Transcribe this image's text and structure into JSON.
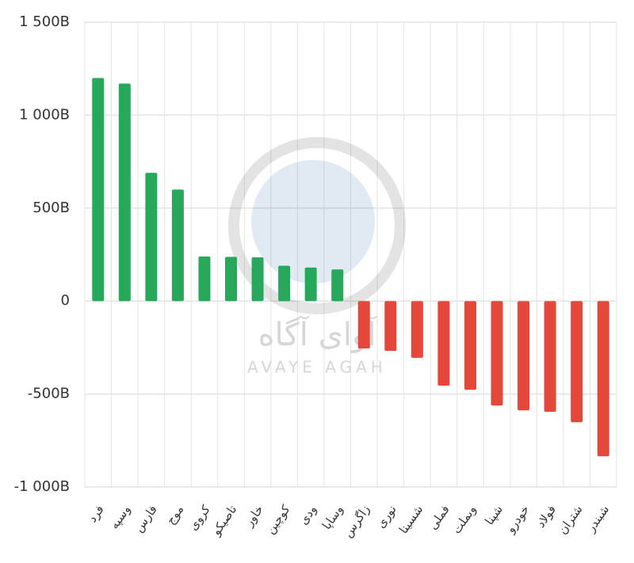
{
  "chart_data": {
    "type": "bar",
    "categories": [
      "فرد",
      "وسپه",
      "فارس",
      "موج",
      "کروی",
      "تاصیکو",
      "خاور",
      "کوچین",
      "ودی",
      "وساپا",
      "زاگرس",
      "نوری",
      "شسینا",
      "فملی",
      "وبملت",
      "شپنا",
      "خودرو",
      "فولاد",
      "شتران",
      "شبندر"
    ],
    "values": [
      1200,
      1170,
      690,
      600,
      240,
      238,
      235,
      190,
      180,
      170,
      -255,
      -268,
      -305,
      -455,
      -477,
      -562,
      -588,
      -596,
      -652,
      -835
    ],
    "positive_color": "#27a85a",
    "negative_color": "#e5473a",
    "ylim": [
      -1000,
      1500
    ],
    "yticks": [
      {
        "value": -1000,
        "label": "-1 000B"
      },
      {
        "value": -500,
        "label": "-500B"
      },
      0,
      {
        "value": 500,
        "label": "500B"
      },
      {
        "value": 1000,
        "label": "1 000B"
      },
      {
        "value": 1500,
        "label": "1 500B"
      }
    ],
    "grid": true,
    "watermark": [
      "آوای آگاه",
      "AVAYE AGAH"
    ]
  }
}
